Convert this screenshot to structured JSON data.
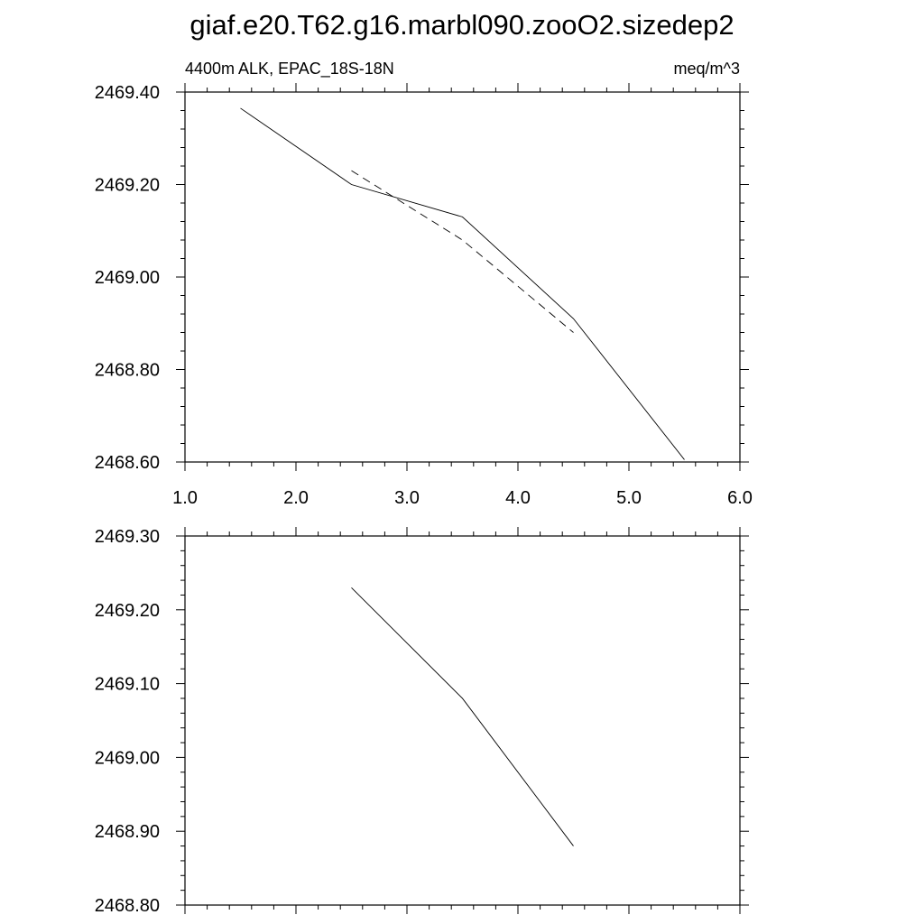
{
  "title": "giaf.e20.T62.g16.marbl090.zooO2.sizedep2",
  "chart_data": [
    {
      "type": "line",
      "subtitle_left": "4400m ALK, EPAC_18S-18N",
      "subtitle_right": "meq/m^3",
      "xlim": [
        1.0,
        6.0
      ],
      "ylim": [
        2468.6,
        2469.4
      ],
      "xticks": [
        "1.0",
        "2.0",
        "3.0",
        "4.0",
        "5.0",
        "6.0"
      ],
      "yticks": [
        "2469.40",
        "2469.20",
        "2469.00",
        "2468.80",
        "2468.60"
      ],
      "series": [
        {
          "style": "solid",
          "x": [
            1.5,
            2.5,
            3.5,
            4.5,
            5.5
          ],
          "y": [
            2469.365,
            2469.2,
            2469.13,
            2468.91,
            2468.605
          ]
        },
        {
          "style": "dashed",
          "x": [
            2.5,
            3.5,
            4.5
          ],
          "y": [
            2469.23,
            2469.08,
            2468.88
          ]
        }
      ]
    },
    {
      "type": "line",
      "xlim": [
        1.0,
        6.0
      ],
      "ylim": [
        2468.8,
        2469.3
      ],
      "yticks": [
        "2469.30",
        "2469.20",
        "2469.10",
        "2469.00",
        "2468.90",
        "2468.80"
      ],
      "series": [
        {
          "style": "solid",
          "x": [
            2.5,
            3.5,
            4.5
          ],
          "y": [
            2469.23,
            2469.08,
            2468.88
          ]
        }
      ]
    }
  ]
}
